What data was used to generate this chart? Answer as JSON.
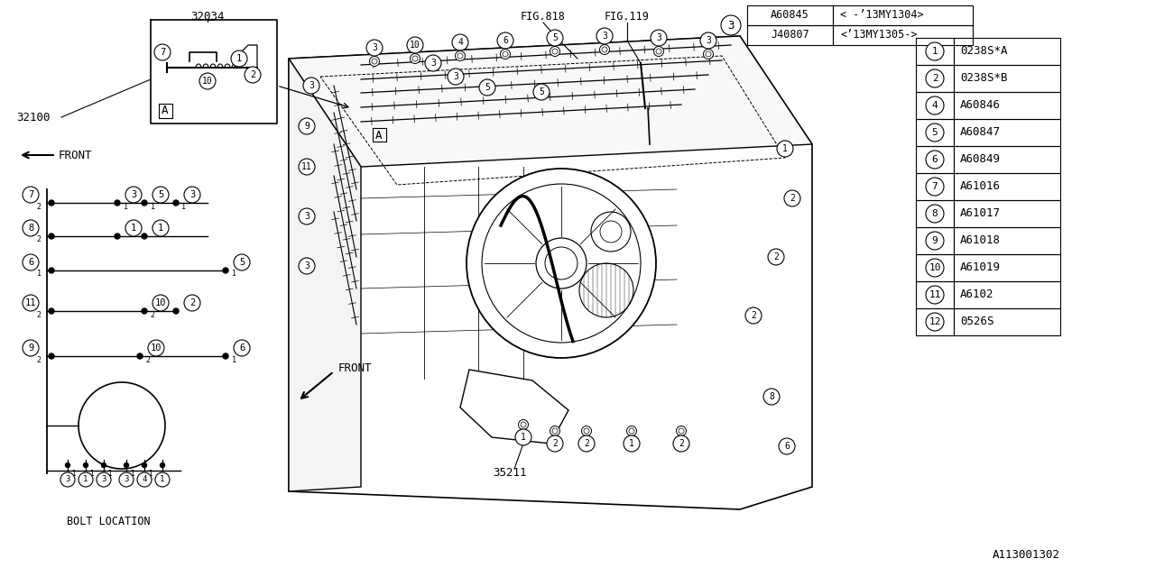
{
  "bg_color": "#ffffff",
  "line_color": "#000000",
  "diagram_id": "A113001302",
  "fig_ref1": "FIG.818",
  "fig_ref2": "FIG.119",
  "part_32034": "32034",
  "part_32100": "32100",
  "part_35211": "35211",
  "top_table": {
    "rows": [
      [
        "A60845",
        "< -’13MY1304>"
      ],
      [
        "J40807",
        "<’13MY1305->"
      ]
    ]
  },
  "legend": [
    [
      "1",
      "0238S*A"
    ],
    [
      "2",
      "0238S*B"
    ],
    [
      "4",
      "A60846"
    ],
    [
      "5",
      "A60847"
    ],
    [
      "6",
      "A60849"
    ],
    [
      "7",
      "A61016"
    ],
    [
      "8",
      "A61017"
    ],
    [
      "9",
      "A61018"
    ],
    [
      "10",
      "A61019"
    ],
    [
      "11",
      "A6102"
    ],
    [
      "12",
      "0526S"
    ]
  ]
}
